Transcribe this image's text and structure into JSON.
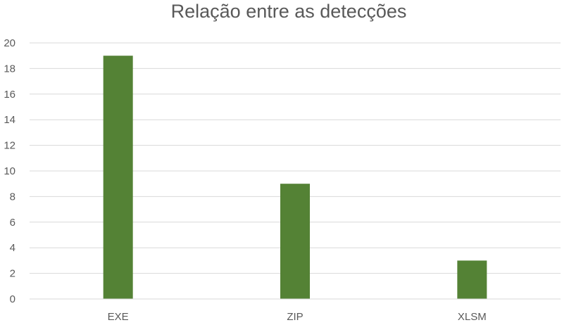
{
  "chart_data": {
    "type": "bar",
    "title": "Relação entre as detecções",
    "categories": [
      "EXE",
      "ZIP",
      "XLSM"
    ],
    "values": [
      19,
      9,
      3
    ],
    "xlabel": "",
    "ylabel": "",
    "ylim": [
      0,
      20
    ],
    "yticks": [
      "0",
      "2",
      "4",
      "6",
      "8",
      "10",
      "12",
      "14",
      "16",
      "18",
      "20"
    ],
    "grid": true,
    "legend": "none",
    "bar_color": "#548235",
    "grid_color": "#d9d9d9",
    "text_color": "#595959"
  }
}
